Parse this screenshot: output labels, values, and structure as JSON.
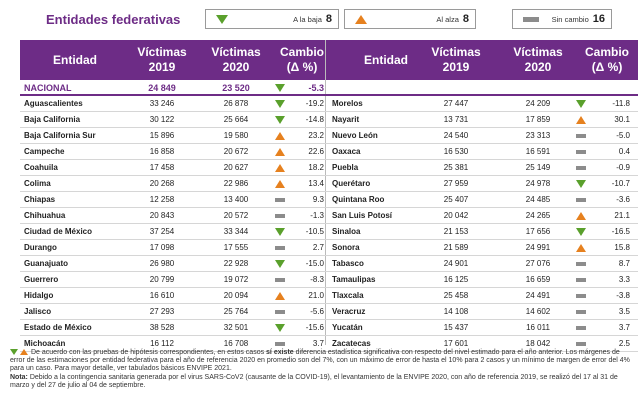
{
  "title": "Entidades federativas",
  "legend": {
    "down": {
      "label": "A la baja",
      "count": "8",
      "icon": "triangle-down-green-icon",
      "color": "#5aa02c"
    },
    "up": {
      "label": "Al alza",
      "count": "8",
      "icon": "triangle-up-orange-icon",
      "color": "#e6811f"
    },
    "none": {
      "label": "Sin cambio",
      "count": "16",
      "icon": "dash-gray-icon",
      "color": "#8c8c8c"
    }
  },
  "header": {
    "entidad": "Entidad",
    "victimas": "Víctimas",
    "year2019": "2019",
    "year2020": "2020",
    "cambio": "Cambio",
    "pct": "(Δ %)"
  },
  "national": {
    "name": "NACIONAL",
    "v2019": "24 849",
    "v2020": "23 520",
    "change": "-5.3",
    "trend": "down"
  },
  "left_rows": [
    {
      "name": "Aguascalientes",
      "v2019": "33 246",
      "v2020": "26 878",
      "change": "-19.2",
      "trend": "down"
    },
    {
      "name": "Baja California",
      "v2019": "30 122",
      "v2020": "25 664",
      "change": "-14.8",
      "trend": "down"
    },
    {
      "name": "Baja California Sur",
      "v2019": "15 896",
      "v2020": "19 580",
      "change": "23.2",
      "trend": "up"
    },
    {
      "name": "Campeche",
      "v2019": "16 858",
      "v2020": "20 672",
      "change": "22.6",
      "trend": "up"
    },
    {
      "name": "Coahuila",
      "v2019": "17 458",
      "v2020": "20 627",
      "change": "18.2",
      "trend": "up"
    },
    {
      "name": "Colima",
      "v2019": "20 268",
      "v2020": "22 986",
      "change": "13.4",
      "trend": "up"
    },
    {
      "name": "Chiapas",
      "v2019": "12 258",
      "v2020": "13 400",
      "change": "9.3",
      "trend": "none"
    },
    {
      "name": "Chihuahua",
      "v2019": "20 843",
      "v2020": "20 572",
      "change": "-1.3",
      "trend": "none"
    },
    {
      "name": "Ciudad de México",
      "v2019": "37 254",
      "v2020": "33 344",
      "change": "-10.5",
      "trend": "down"
    },
    {
      "name": "Durango",
      "v2019": "17 098",
      "v2020": "17 555",
      "change": "2.7",
      "trend": "none"
    },
    {
      "name": "Guanajuato",
      "v2019": "26 980",
      "v2020": "22 928",
      "change": "-15.0",
      "trend": "down"
    },
    {
      "name": "Guerrero",
      "v2019": "20 799",
      "v2020": "19 072",
      "change": "-8.3",
      "trend": "none"
    },
    {
      "name": "Hidalgo",
      "v2019": "16 610",
      "v2020": "20 094",
      "change": "21.0",
      "trend": "up"
    },
    {
      "name": "Jalisco",
      "v2019": "27 293",
      "v2020": "25 764",
      "change": "-5.6",
      "trend": "none"
    },
    {
      "name": "Estado de México",
      "v2019": "38 528",
      "v2020": "32 501",
      "change": "-15.6",
      "trend": "down"
    },
    {
      "name": "Michoacán",
      "v2019": "16 112",
      "v2020": "16 708",
      "change": "3.7",
      "trend": "none"
    }
  ],
  "right_rows": [
    {
      "name": "Morelos",
      "v2019": "27 447",
      "v2020": "24 209",
      "change": "-11.8",
      "trend": "down"
    },
    {
      "name": "Nayarit",
      "v2019": "13 731",
      "v2020": "17 859",
      "change": "30.1",
      "trend": "up"
    },
    {
      "name": "Nuevo León",
      "v2019": "24 540",
      "v2020": "23 313",
      "change": "-5.0",
      "trend": "none"
    },
    {
      "name": "Oaxaca",
      "v2019": "16 530",
      "v2020": "16 591",
      "change": "0.4",
      "trend": "none"
    },
    {
      "name": "Puebla",
      "v2019": "25 381",
      "v2020": "25 149",
      "change": "-0.9",
      "trend": "none"
    },
    {
      "name": "Querétaro",
      "v2019": "27 959",
      "v2020": "24 978",
      "change": "-10.7",
      "trend": "down"
    },
    {
      "name": "Quintana Roo",
      "v2019": "25 407",
      "v2020": "24 485",
      "change": "-3.6",
      "trend": "none"
    },
    {
      "name": "San Luis Potosí",
      "v2019": "20 042",
      "v2020": "24 265",
      "change": "21.1",
      "trend": "up"
    },
    {
      "name": "Sinaloa",
      "v2019": "21 153",
      "v2020": "17 656",
      "change": "-16.5",
      "trend": "down"
    },
    {
      "name": "Sonora",
      "v2019": "21 589",
      "v2020": "24 991",
      "change": "15.8",
      "trend": "up"
    },
    {
      "name": "Tabasco",
      "v2019": "24 901",
      "v2020": "27 076",
      "change": "8.7",
      "trend": "none"
    },
    {
      "name": "Tamaulipas",
      "v2019": "16 125",
      "v2020": "16 659",
      "change": "3.3",
      "trend": "none"
    },
    {
      "name": "Tlaxcala",
      "v2019": "25 458",
      "v2020": "24 491",
      "change": "-3.8",
      "trend": "none"
    },
    {
      "name": "Veracruz",
      "v2019": "14 108",
      "v2020": "14 602",
      "change": "3.5",
      "trend": "none"
    },
    {
      "name": "Yucatán",
      "v2019": "15 437",
      "v2020": "16 011",
      "change": "3.7",
      "trend": "none"
    },
    {
      "name": "Zacatecas",
      "v2019": "17 601",
      "v2020": "18 042",
      "change": "2.5",
      "trend": "none"
    }
  ],
  "notes": {
    "n1_a": "De acuerdo con las pruebas de hipótesis correspondientes, en estos casos ",
    "n1_bold": "sí existe",
    "n1_b": " diferencia estadística significativa con respecto del nivel estimado para el año anterior. Los márgenes de error de las estimaciones por entidad federativa para el año de referencia 2020 en promedio son del 7%, con un máximo de error de hasta el 10% para 2 casos y un mínimo de margen de error del 4% para un caso. Para mayor detalle, ver tabulados básicos ENVIPE 2021.",
    "n2_label": "Nota:",
    "n2_text": " Debido a la contingencia sanitaria generada por el virus SARS-CoV2 (causante de la COVID-19), el levantamiento de la ENVIPE 2020, con año de referencia 2019, se realizó del 17 al 31 de marzo y del 27 de julio al 04 de septiembre."
  }
}
